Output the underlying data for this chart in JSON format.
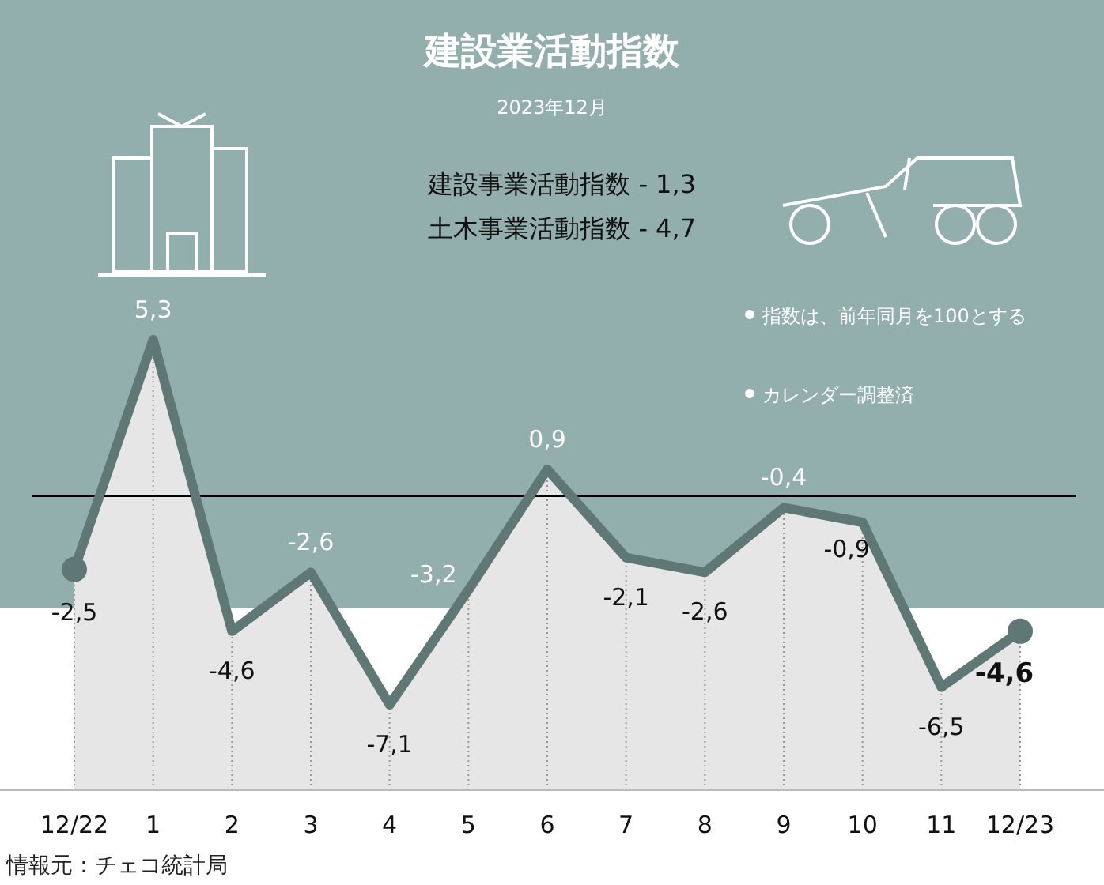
{
  "chart_data": {
    "type": "area",
    "title": "建設業活動指数",
    "subtitle": "2023年12月",
    "categories": [
      "12/22",
      "1",
      "2",
      "3",
      "4",
      "5",
      "6",
      "7",
      "8",
      "9",
      "10",
      "11",
      "12/23"
    ],
    "series": [
      {
        "color": "#5f7775",
        "values": [
          -2.5,
          5.3,
          -4.6,
          -2.6,
          -7.1,
          -3.2,
          0.9,
          -2.1,
          -2.6,
          -0.4,
          -0.9,
          -6.5,
          -4.6
        ],
        "value_labels": [
          "-2,5",
          "5,3",
          "-4,6",
          "-2,6",
          "-7,1",
          "-3,2",
          "0,9",
          "-2,1",
          "-2,6",
          "-0,4",
          "-0,9",
          "-6,5",
          "-4,6"
        ]
      }
    ],
    "ref_lines": [
      {
        "axis": "y",
        "value": 0,
        "color": "#000000"
      }
    ],
    "grid": "x",
    "annotations": [
      "建設事業活動指数  - 1,3",
      "土木事業活動指数  - 4,7",
      "指数は、前年同月を100とする",
      "カレンダー調整済",
      "情報元：チェコ統計局"
    ]
  }
}
